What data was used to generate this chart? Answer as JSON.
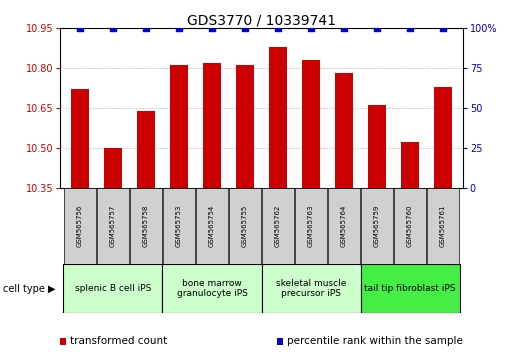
{
  "title": "GDS3770 / 10339741",
  "samples": [
    "GSM565756",
    "GSM565757",
    "GSM565758",
    "GSM565753",
    "GSM565754",
    "GSM565755",
    "GSM565762",
    "GSM565763",
    "GSM565764",
    "GSM565759",
    "GSM565760",
    "GSM565761"
  ],
  "bar_values": [
    10.72,
    10.5,
    10.64,
    10.81,
    10.82,
    10.81,
    10.88,
    10.83,
    10.78,
    10.66,
    10.52,
    10.73
  ],
  "percentile_values": [
    100,
    100,
    100,
    100,
    100,
    100,
    100,
    100,
    100,
    100,
    100,
    100
  ],
  "ylim_left": [
    10.35,
    10.95
  ],
  "ylim_right": [
    0,
    100
  ],
  "yticks_left": [
    10.35,
    10.5,
    10.65,
    10.8,
    10.95
  ],
  "yticks_right": [
    0,
    25,
    50,
    75,
    100
  ],
  "bar_color": "#cc0000",
  "dot_color": "#0000cc",
  "cell_groups": [
    {
      "label": "splenic B cell iPS",
      "start": 0,
      "end": 3,
      "color": "#ccffcc"
    },
    {
      "label": "bone marrow\ngranulocyte iPS",
      "start": 3,
      "end": 6,
      "color": "#ccffcc"
    },
    {
      "label": "skeletal muscle\nprecursor iPS",
      "start": 6,
      "end": 9,
      "color": "#ccffcc"
    },
    {
      "label": "tail tip fibroblast iPS",
      "start": 9,
      "end": 12,
      "color": "#44ee44"
    }
  ],
  "cell_type_label": "cell type",
  "legend_items": [
    {
      "label": "transformed count",
      "color": "#cc0000"
    },
    {
      "label": "percentile rank within the sample",
      "color": "#0000cc"
    }
  ],
  "background_color": "#ffffff",
  "grid_color": "#888888",
  "tick_label_color_left": "#cc0000",
  "tick_label_color_right": "#0000cc",
  "bar_width": 0.55,
  "dot_size": 20,
  "title_fontsize": 10,
  "axis_fontsize": 7,
  "legend_fontsize": 7.5,
  "cell_label_fontsize": 6.5,
  "sample_fontsize": 5.0
}
